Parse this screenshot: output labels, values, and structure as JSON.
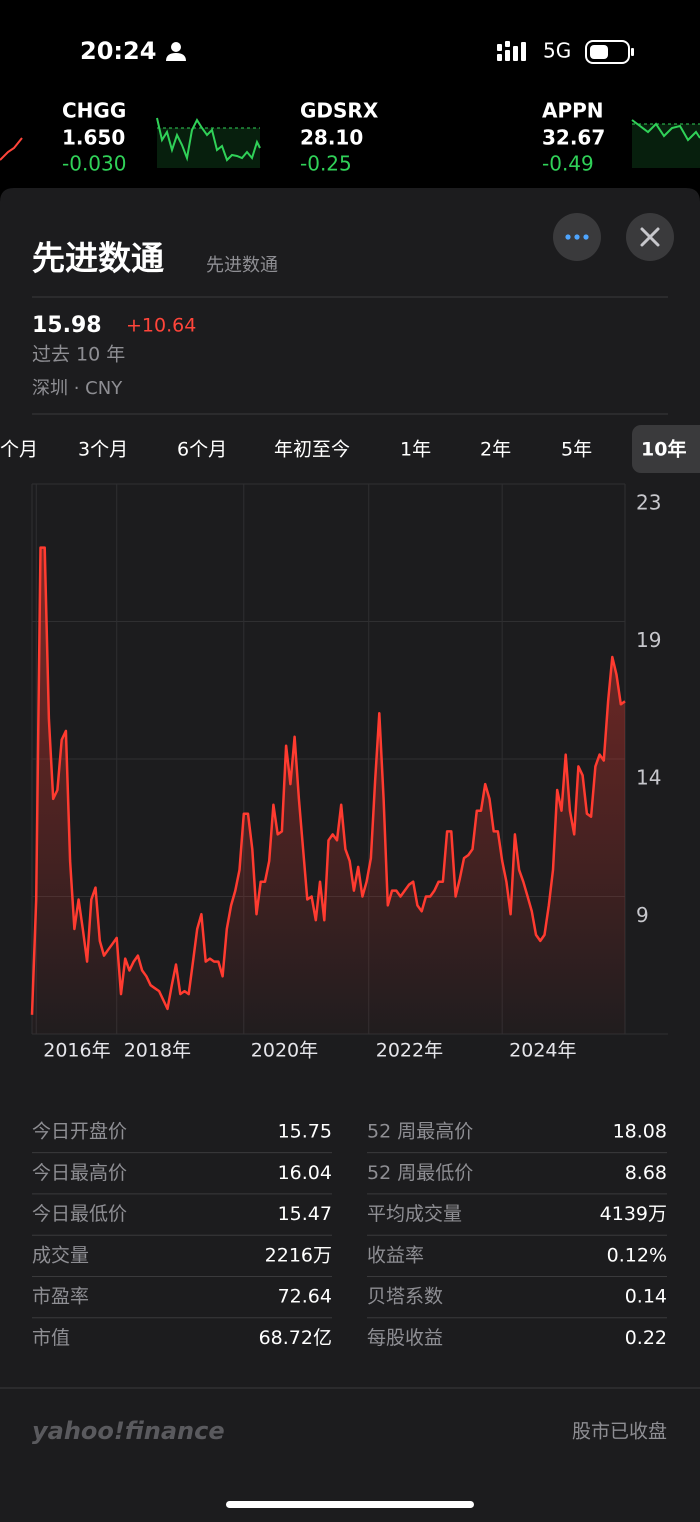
{
  "status_bar": {
    "time": "20:24",
    "network": "5G"
  },
  "ticker": [
    {
      "symbol": "CHGG",
      "price": "1.650",
      "change": "-0.030"
    },
    {
      "symbol": "GDSRX",
      "price": "28.10",
      "change": "-0.25"
    },
    {
      "symbol": "APPN",
      "price": "32.67",
      "change": "-0.49"
    }
  ],
  "header": {
    "title": "先进数通",
    "subtitle": "先进数通",
    "price": "15.98",
    "change": "+10.64",
    "period": "过去 10 年",
    "exchange": "深圳 · CNY"
  },
  "ranges": [
    "个月",
    "3个月",
    "6个月",
    "年初至今",
    "1年",
    "2年",
    "5年",
    "10年"
  ],
  "selected_range": 7,
  "chart_data": {
    "type": "line",
    "color": "#ff3b30",
    "values": [
      5.3,
      9.2,
      21.1,
      21.1,
      15.3,
      12.6,
      12.9,
      14.6,
      14.9,
      10.5,
      8.2,
      9.2,
      8.2,
      7.1,
      9.2,
      9.6,
      7.8,
      7.3,
      7.5,
      7.7,
      7.9,
      6.0,
      7.2,
      6.8,
      7.1,
      7.3,
      6.8,
      6.6,
      6.3,
      6.2,
      6.1,
      5.8,
      5.5,
      6.3,
      7.0,
      6.0,
      6.1,
      6.0,
      7.1,
      8.2,
      8.7,
      7.1,
      7.2,
      7.1,
      7.1,
      6.6,
      8.2,
      9.0,
      9.5,
      10.2,
      12.1,
      12.1,
      10.9,
      8.7,
      9.8,
      9.8,
      10.5,
      12.4,
      11.4,
      11.5,
      14.4,
      13.1,
      14.7,
      12.6,
      10.9,
      9.2,
      9.3,
      8.5,
      9.8,
      8.5,
      11.2,
      11.4,
      11.2,
      12.4,
      10.9,
      10.5,
      9.5,
      10.3,
      9.3,
      9.8,
      10.6,
      13.2,
      15.5,
      12.6,
      9.0,
      9.5,
      9.5,
      9.3,
      9.5,
      9.7,
      9.8,
      9.0,
      8.8,
      9.3,
      9.3,
      9.5,
      9.8,
      9.8,
      11.5,
      11.5,
      9.3,
      9.9,
      10.6,
      10.7,
      10.9,
      12.2,
      12.2,
      13.1,
      12.6,
      11.5,
      11.5,
      10.5,
      9.8,
      8.7,
      11.4,
      10.2,
      9.8,
      9.3,
      8.8,
      8.0,
      7.8,
      8.0,
      9.0,
      10.2,
      12.9,
      12.2,
      14.1,
      12.2,
      11.4,
      13.7,
      13.4,
      12.1,
      12.0,
      13.7,
      14.1,
      13.9,
      15.9,
      17.4,
      16.8,
      15.8,
      15.9
    ],
    "xlim": [
      0,
      140
    ],
    "xticks": [
      {
        "value": 1,
        "label": "2016年"
      },
      {
        "value": 20,
        "label": "2018年"
      },
      {
        "value": 50,
        "label": "2020年"
      },
      {
        "value": 79.5,
        "label": "2022年"
      },
      {
        "value": 111,
        "label": "2024年"
      }
    ],
    "ylim": [
      4.65,
      23.25
    ],
    "yticks": [
      {
        "value": 9.3,
        "label": "9"
      },
      {
        "value": 13.95,
        "label": "14"
      },
      {
        "value": 18.6,
        "label": "19"
      },
      {
        "value": 23.25,
        "label": "23"
      }
    ],
    "grid": true
  },
  "stats": [
    {
      "label": "今日开盘价",
      "value": "15.75"
    },
    {
      "label": "今日最高价",
      "value": "16.04"
    },
    {
      "label": "今日最低价",
      "value": "15.47"
    },
    {
      "label": "成交量",
      "value": "2216万"
    },
    {
      "label": "市盈率",
      "value": "72.64"
    },
    {
      "label": "市值",
      "value": "68.72亿"
    },
    {
      "label": "52 周最高价",
      "value": "18.08"
    },
    {
      "label": "52 周最低价",
      "value": "8.68"
    },
    {
      "label": "平均成交量",
      "value": "4139万"
    },
    {
      "label": "收益率",
      "value": "0.12%"
    },
    {
      "label": "贝塔系数",
      "value": "0.14"
    },
    {
      "label": "每股收益",
      "value": "0.22"
    }
  ],
  "footer": {
    "brand": "yahoo!finance",
    "status": "股市已收盘"
  }
}
